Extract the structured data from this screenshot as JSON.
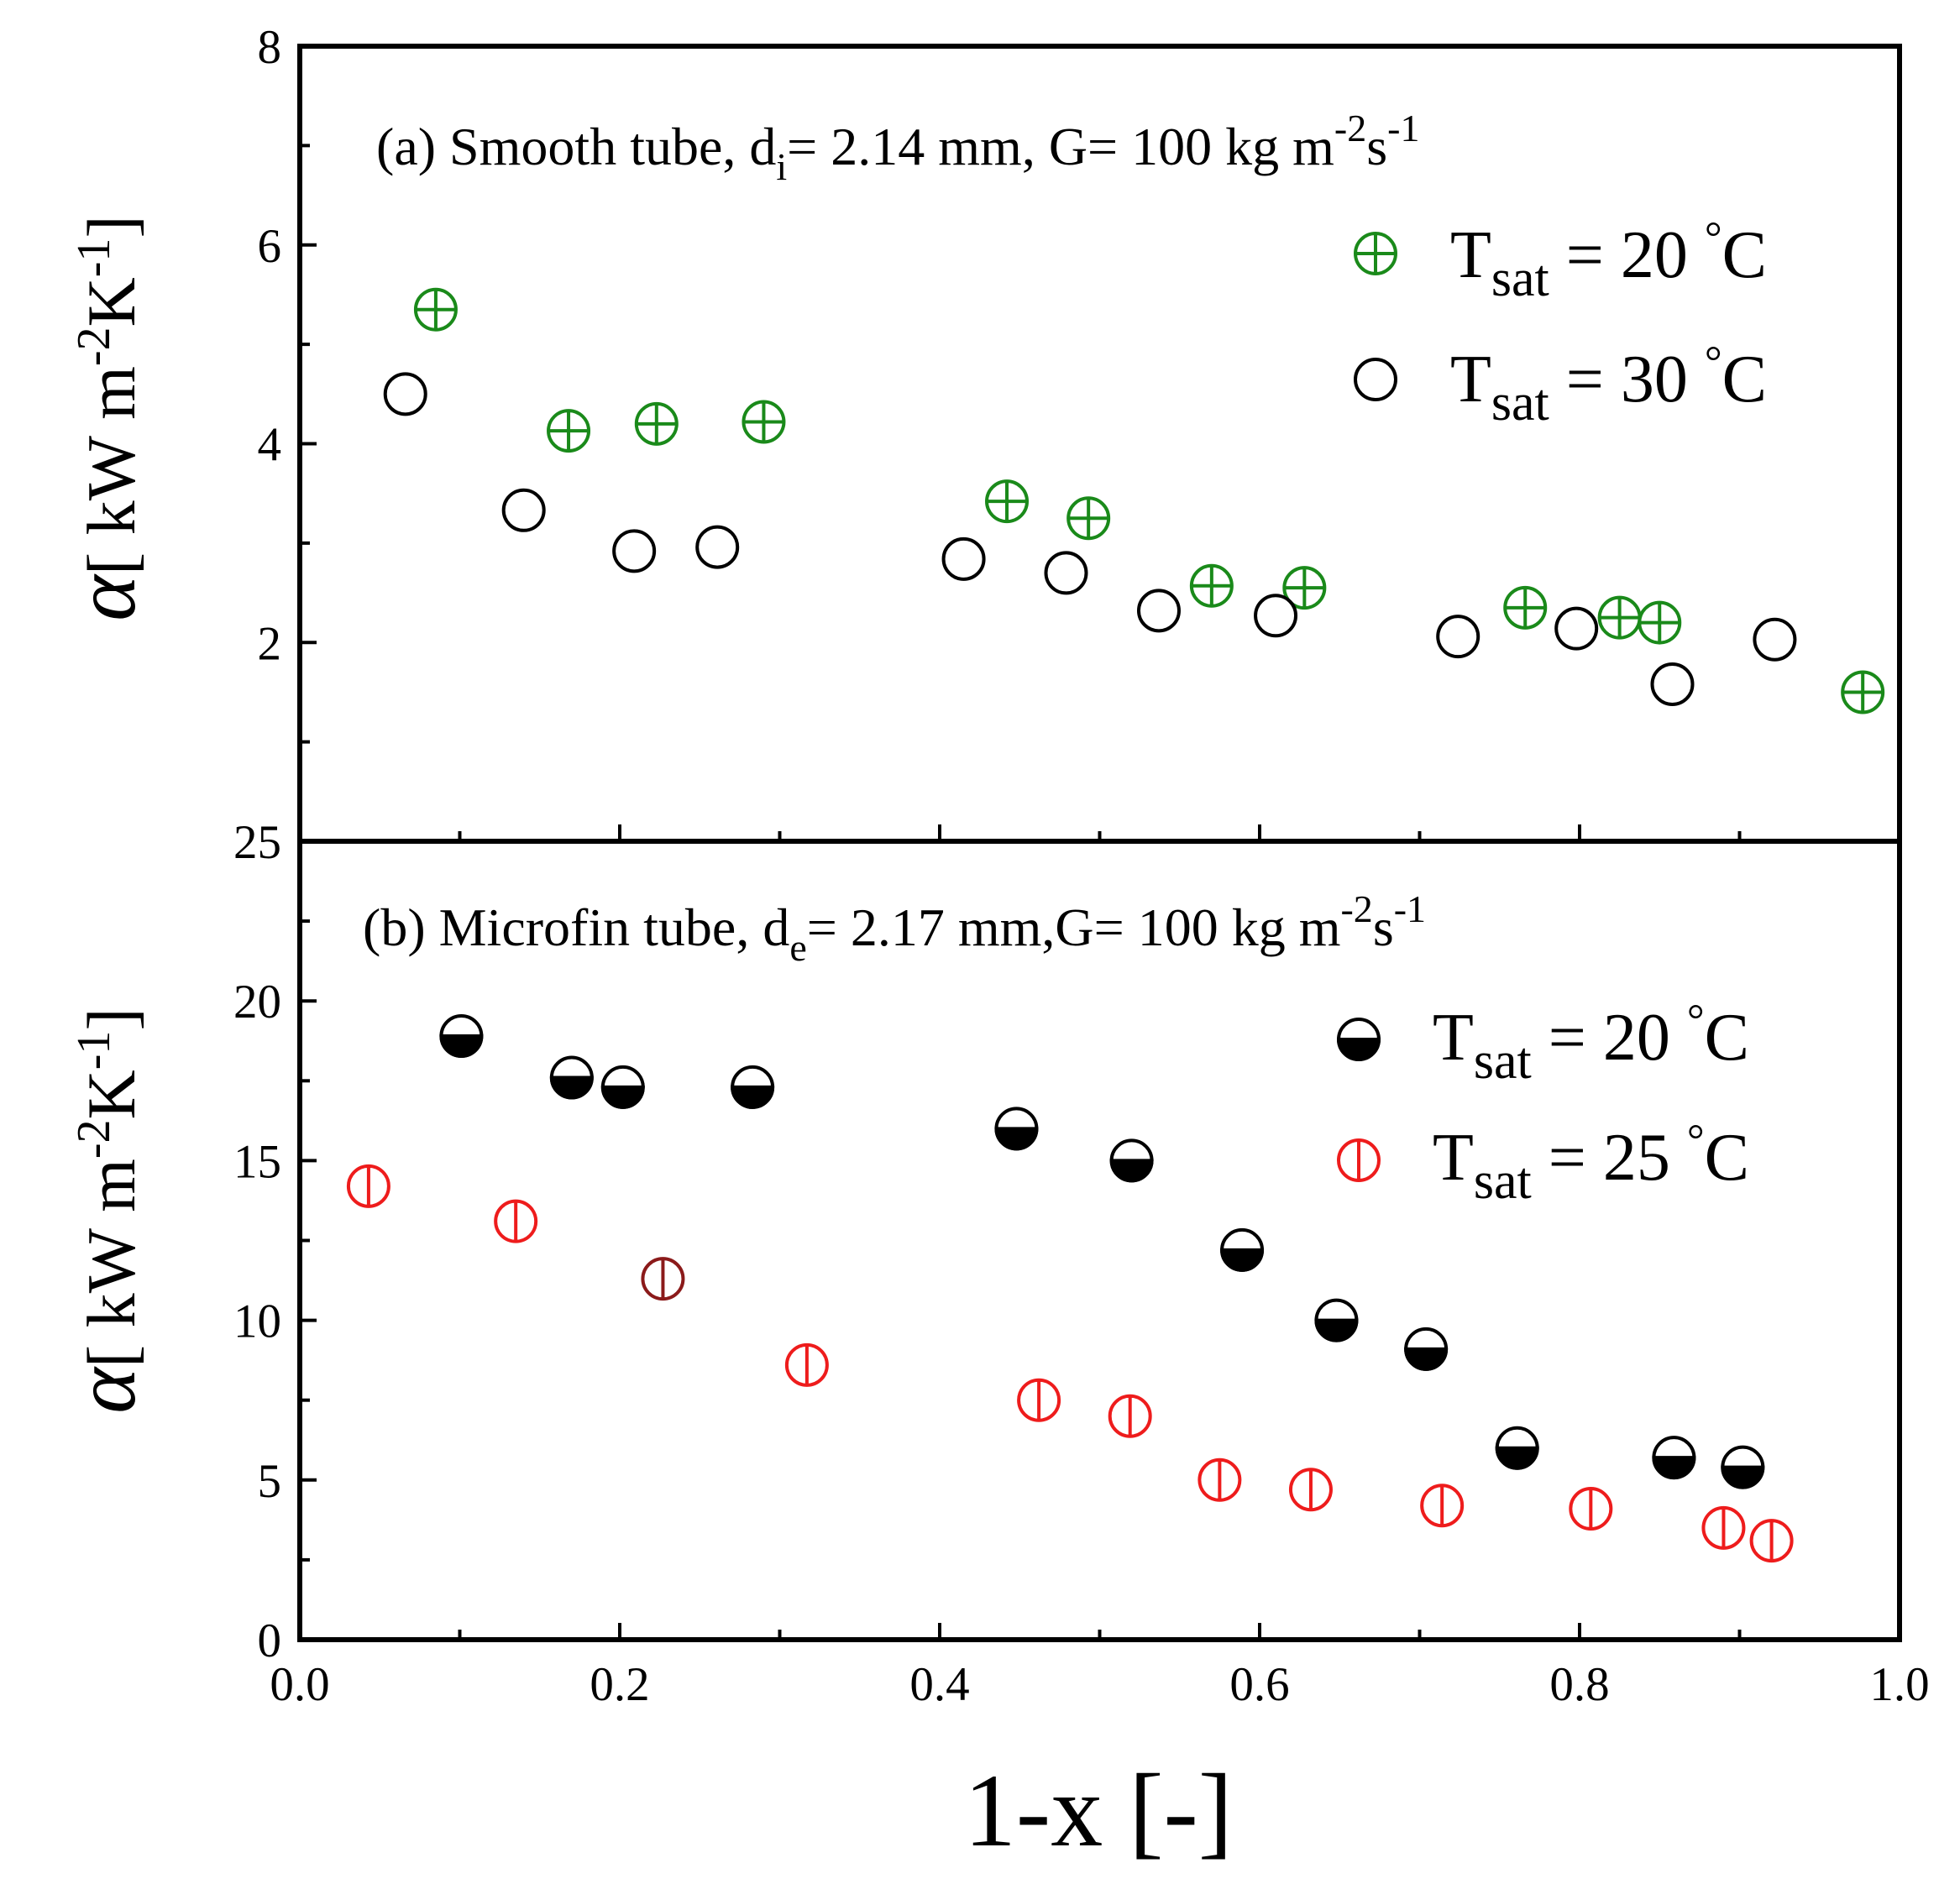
{
  "colors": {
    "green": "#1a8a1a",
    "black": "#000000",
    "red": "#ee1c1c",
    "darkred": "#8b1a1a"
  },
  "chart_data": [
    {
      "id": "a",
      "type": "scatter",
      "title_parts": [
        "(a) Smooth tube, d",
        "i",
        "= 2.14 mm, G= 100 kg m",
        "-2",
        "s",
        "-1"
      ],
      "ylabel_parts": [
        "[ kW m",
        "-2",
        "K",
        "-1",
        "]"
      ],
      "ylabel_symbol": "α",
      "xlabel": "1-x [-]",
      "xlim": [
        0.0,
        1.0
      ],
      "ylim": [
        0,
        8
      ],
      "yticks": [
        2,
        4,
        6,
        8
      ],
      "ytick_labels": [
        "2",
        "4",
        "6",
        "8"
      ],
      "grid": false,
      "legend_position": "top-right",
      "series": [
        {
          "name": "Tsat = 20 °C",
          "legend_parts": [
            "T",
            "sat",
            " = 20 ",
            "°",
            "C"
          ],
          "marker": "circle-plus",
          "color": "#1a8a1a",
          "x": [
            0.085,
            0.168,
            0.223,
            0.29,
            0.442,
            0.493,
            0.57,
            0.628,
            0.766,
            0.825,
            0.85,
            0.977
          ],
          "y": [
            5.35,
            4.13,
            4.2,
            4.22,
            3.42,
            3.25,
            2.57,
            2.55,
            2.35,
            2.25,
            2.2,
            1.5
          ]
        },
        {
          "name": "Tsat = 30 °C",
          "legend_parts": [
            "T",
            "sat",
            " = 30 ",
            "°",
            "C"
          ],
          "marker": "circle-open",
          "color": "#000000",
          "x": [
            0.066,
            0.14,
            0.209,
            0.261,
            0.415,
            0.479,
            0.537,
            0.61,
            0.724,
            0.798,
            0.858,
            0.922
          ],
          "y": [
            4.5,
            3.33,
            2.92,
            2.96,
            2.84,
            2.7,
            2.32,
            2.27,
            2.06,
            2.14,
            1.58,
            2.03
          ]
        }
      ]
    },
    {
      "id": "b",
      "type": "scatter",
      "title_parts": [
        "(b) Microfin tube, d",
        "e",
        "= 2.17 mm,G= 100 kg m",
        "-2",
        "s",
        "-1"
      ],
      "ylabel_parts": [
        "[ kW m",
        "-2",
        "K",
        "-1",
        "]"
      ],
      "ylabel_symbol": "α",
      "xlabel": "1-x [-]",
      "xlim": [
        0.0,
        1.0
      ],
      "ylim": [
        0,
        25
      ],
      "xticks": [
        0.0,
        0.2,
        0.4,
        0.6,
        0.8,
        1.0
      ],
      "xtick_labels": [
        "0.0",
        "0.2",
        "0.4",
        "0.6",
        "0.8",
        "1.0"
      ],
      "yticks": [
        0,
        5,
        10,
        15,
        20,
        25
      ],
      "ytick_labels": [
        "0",
        "5",
        "10",
        "15",
        "20",
        "25"
      ],
      "grid": false,
      "legend_position": "top-right",
      "series": [
        {
          "name": "Tsat = 20 °C",
          "legend_parts": [
            "T",
            "sat",
            " = 20 ",
            "°",
            "C"
          ],
          "marker": "circle-half-bottom",
          "color": "#000000",
          "x": [
            0.101,
            0.17,
            0.202,
            0.283,
            0.448,
            0.52,
            0.589,
            0.648,
            0.704,
            0.761,
            0.859,
            0.902
          ],
          "y": [
            18.9,
            17.6,
            17.3,
            17.3,
            16.0,
            15.0,
            12.2,
            10.0,
            9.1,
            6.0,
            5.7,
            5.4
          ]
        },
        {
          "name": "Tsat = 25 °C",
          "legend_parts": [
            "T",
            "sat",
            " = 25 ",
            "°",
            "C"
          ],
          "marker": "circle-vline",
          "color": "#ee1c1c",
          "x": [
            0.043,
            0.135,
            0.227,
            0.317,
            0.462,
            0.519,
            0.575,
            0.632,
            0.714,
            0.807,
            0.89,
            0.92
          ],
          "y": [
            14.2,
            13.1,
            11.3,
            8.6,
            7.5,
            7.0,
            5.0,
            4.7,
            4.2,
            4.1,
            3.5,
            3.1
          ]
        }
      ]
    }
  ]
}
